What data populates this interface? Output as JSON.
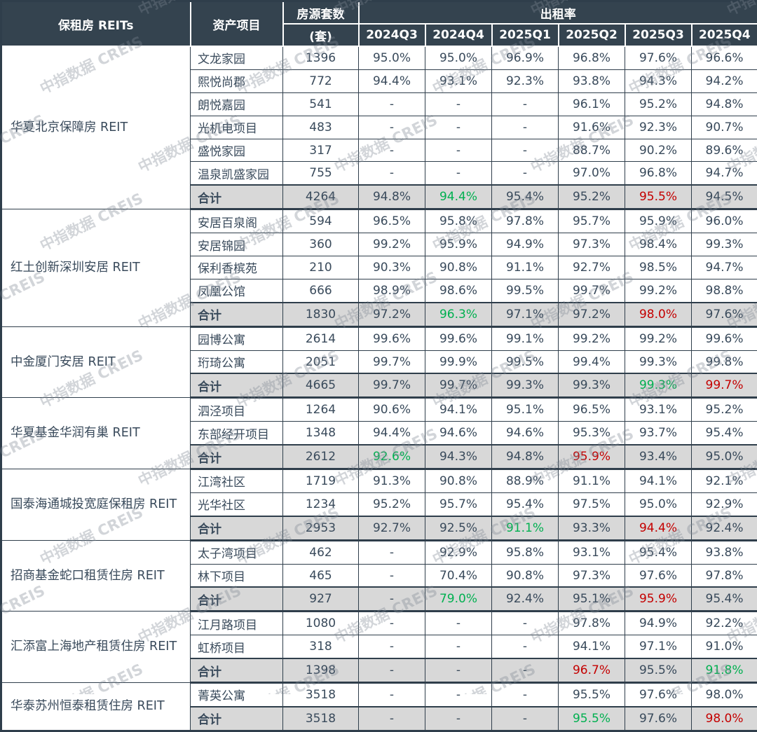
{
  "watermark": "中指数据 CREIS",
  "colors": {
    "header_bg": "#34434f",
    "border": "#2f3e4b",
    "text": "#394a5b",
    "total_bg": "#d8d8d8",
    "green": "#00b050",
    "red": "#c40000"
  },
  "chart_data": {
    "type": "table",
    "title": "保租房 REITs 出租率",
    "header": {
      "reits": "保租房 REITs",
      "asset": "资产项目",
      "units_line1": "房源套数",
      "units_line2": "(套)",
      "occupancy": "出租率",
      "quarters": [
        "2024Q3",
        "2024Q4",
        "2025Q1",
        "2025Q2",
        "2025Q3",
        "2025Q4"
      ]
    },
    "total_label": "合计",
    "groups": [
      {
        "reit": "华夏北京保障房 REIT",
        "projects": [
          {
            "name": "文龙家园",
            "units": "1396",
            "values": [
              "95.0%",
              "95.0%",
              "96.9%",
              "96.8%",
              "97.6%",
              "96.6%"
            ]
          },
          {
            "name": "熙悦尚郡",
            "units": "772",
            "values": [
              "94.4%",
              "93.1%",
              "92.3%",
              "93.8%",
              "94.3%",
              "94.2%"
            ]
          },
          {
            "name": "朗悦嘉园",
            "units": "541",
            "values": [
              "-",
              "-",
              "-",
              "96.1%",
              "95.2%",
              "94.8%"
            ]
          },
          {
            "name": "光机电项目",
            "units": "483",
            "values": [
              "-",
              "-",
              "-",
              "91.6%",
              "92.3%",
              "90.7%"
            ]
          },
          {
            "name": "盛悦家园",
            "units": "317",
            "values": [
              "-",
              "-",
              "-",
              "88.7%",
              "90.2%",
              "89.6%"
            ]
          },
          {
            "name": "温泉凯盛家园",
            "units": "755",
            "values": [
              "-",
              "-",
              "-",
              "97.0%",
              "96.8%",
              "94.7%"
            ]
          }
        ],
        "total": {
          "units": "4264",
          "values": [
            "94.8%",
            "94.4%",
            "95.4%",
            "95.2%",
            "95.5%",
            "94.5%"
          ],
          "highlight": [
            null,
            "green",
            null,
            null,
            "red",
            null
          ]
        }
      },
      {
        "reit": "红土创新深圳安居 REIT",
        "projects": [
          {
            "name": "安居百泉阁",
            "units": "594",
            "values": [
              "96.5%",
              "95.8%",
              "97.8%",
              "95.7%",
              "95.9%",
              "96.0%"
            ]
          },
          {
            "name": "安居锦园",
            "units": "360",
            "values": [
              "99.2%",
              "95.9%",
              "94.9%",
              "97.3%",
              "98.4%",
              "99.3%"
            ]
          },
          {
            "name": "保利香槟苑",
            "units": "210",
            "values": [
              "90.3%",
              "90.8%",
              "91.1%",
              "92.7%",
              "98.5%",
              "94.7%"
            ]
          },
          {
            "name": "凤凰公馆",
            "units": "666",
            "values": [
              "98.9%",
              "98.6%",
              "99.5%",
              "99.7%",
              "99.2%",
              "98.8%"
            ]
          }
        ],
        "total": {
          "units": "1830",
          "values": [
            "97.2%",
            "96.3%",
            "97.1%",
            "97.2%",
            "98.0%",
            "97.6%"
          ],
          "highlight": [
            null,
            "green",
            null,
            null,
            "red",
            null
          ]
        }
      },
      {
        "reit": "中金厦门安居 REIT",
        "projects": [
          {
            "name": "园博公寓",
            "units": "2614",
            "values": [
              "99.6%",
              "99.6%",
              "99.1%",
              "99.2%",
              "99.2%",
              "99.6%"
            ]
          },
          {
            "name": "珩琦公寓",
            "units": "2051",
            "values": [
              "99.7%",
              "99.9%",
              "99.5%",
              "99.4%",
              "99.3%",
              "99.8%"
            ]
          }
        ],
        "total": {
          "units": "4665",
          "values": [
            "99.7%",
            "99.7%",
            "99.3%",
            "99.3%",
            "99.3%",
            "99.7%"
          ],
          "highlight": [
            null,
            null,
            null,
            null,
            "green",
            "red"
          ]
        }
      },
      {
        "reit": "华夏基金华润有巢 REIT",
        "projects": [
          {
            "name": "泗泾项目",
            "units": "1264",
            "values": [
              "90.6%",
              "94.1%",
              "95.1%",
              "96.5%",
              "93.1%",
              "95.2%"
            ]
          },
          {
            "name": "东部经开项目",
            "units": "1348",
            "values": [
              "94.4%",
              "94.6%",
              "94.6%",
              "95.3%",
              "93.7%",
              "95.4%"
            ]
          }
        ],
        "total": {
          "units": "2612",
          "values": [
            "92.6%",
            "94.3%",
            "94.8%",
            "95.9%",
            "93.4%",
            "95.0%"
          ],
          "highlight": [
            "green",
            null,
            null,
            "red",
            null,
            null
          ]
        }
      },
      {
        "reit": "国泰海通城投宽庭保租房 REIT",
        "projects": [
          {
            "name": "江湾社区",
            "units": "1719",
            "values": [
              "91.3%",
              "90.8%",
              "88.9%",
              "91.1%",
              "94.1%",
              "92.1%"
            ]
          },
          {
            "name": "光华社区",
            "units": "1234",
            "values": [
              "95.2%",
              "95.7%",
              "95.4%",
              "97.5%",
              "95.0%",
              "92.9%"
            ]
          }
        ],
        "total": {
          "units": "2953",
          "values": [
            "92.7%",
            "92.5%",
            "91.1%",
            "93.3%",
            "94.4%",
            "92.4%"
          ],
          "highlight": [
            null,
            null,
            "green",
            null,
            "red",
            null
          ]
        }
      },
      {
        "reit": "招商基金蛇口租赁住房 REIT",
        "projects": [
          {
            "name": "太子湾项目",
            "units": "462",
            "values": [
              "-",
              "92.9%",
              "95.8%",
              "93.1%",
              "95.4%",
              "93.8%"
            ]
          },
          {
            "name": "林下项目",
            "units": "465",
            "values": [
              "-",
              "70.4%",
              "90.8%",
              "97.3%",
              "97.6%",
              "97.8%"
            ]
          }
        ],
        "total": {
          "units": "927",
          "values": [
            "-",
            "79.0%",
            "92.4%",
            "95.1%",
            "95.9%",
            "95.4%"
          ],
          "highlight": [
            null,
            "green",
            null,
            null,
            "red",
            null
          ]
        }
      },
      {
        "reit": "汇添富上海地产租赁住房 REIT",
        "projects": [
          {
            "name": "江月路项目",
            "units": "1080",
            "values": [
              "-",
              "-",
              "-",
              "97.8%",
              "94.9%",
              "92.2%"
            ]
          },
          {
            "name": "虹桥项目",
            "units": "318",
            "values": [
              "-",
              "-",
              "-",
              "94.1%",
              "97.1%",
              "91.0%"
            ]
          }
        ],
        "total": {
          "units": "1398",
          "values": [
            "-",
            "-",
            "-",
            "96.7%",
            "95.5%",
            "91.8%"
          ],
          "highlight": [
            null,
            null,
            null,
            "red",
            null,
            "green"
          ]
        }
      },
      {
        "reit": "华泰苏州恒泰租赁住房 REIT",
        "projects": [
          {
            "name": "菁英公寓",
            "units": "3518",
            "values": [
              "-",
              "-",
              "-",
              "95.5%",
              "97.6%",
              "98.0%"
            ]
          }
        ],
        "total": {
          "units": "3518",
          "values": [
            "-",
            "-",
            "-",
            "95.5%",
            "97.6%",
            "98.0%"
          ],
          "highlight": [
            null,
            null,
            null,
            "green",
            null,
            "red"
          ]
        }
      }
    ]
  }
}
